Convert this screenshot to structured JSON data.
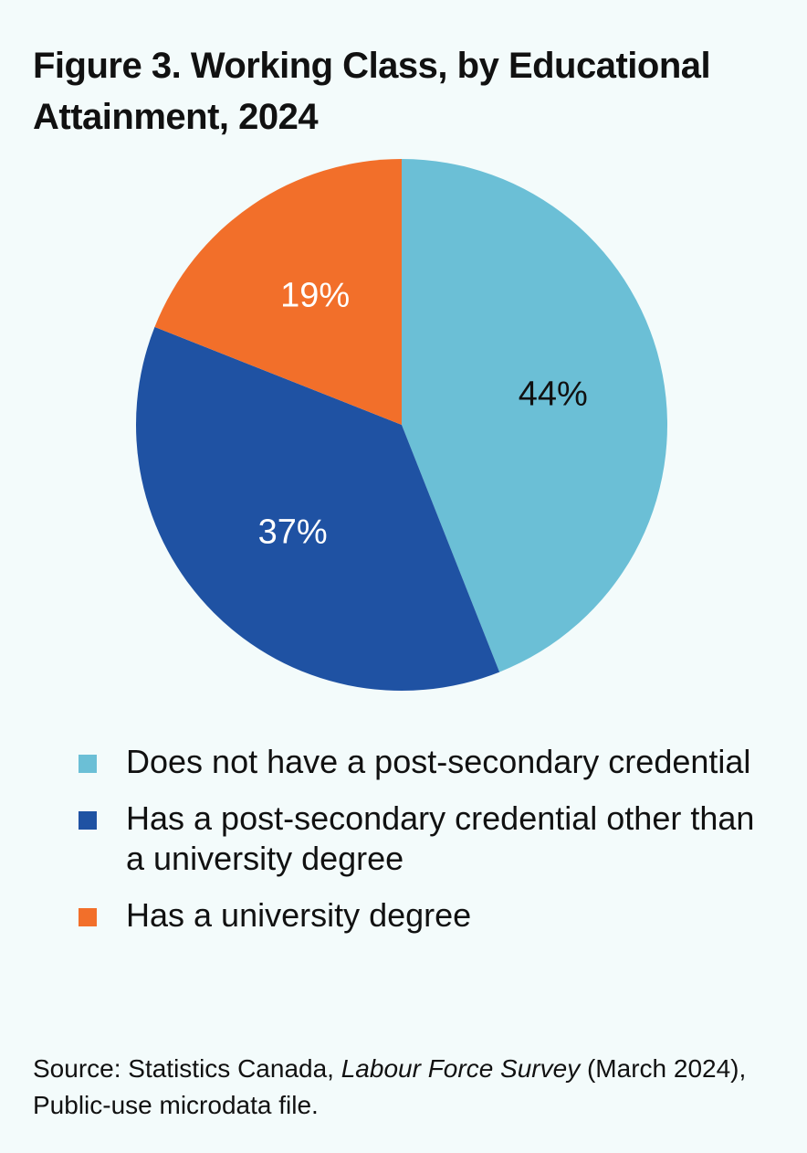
{
  "colors": {
    "background": "#f3fbfb",
    "slice_1": "#6bbfd6",
    "slice_2": "#1f52a3",
    "slice_3": "#f26f2a",
    "label_dark": "#111111",
    "label_light": "#ffffff"
  },
  "chart_data": {
    "type": "pie",
    "title": "Figure 3. Working Class, by Educational Attainment, 2024",
    "title_lines": [
      "Figure 3. Working Class, by Educational",
      "Attainment, 2024"
    ],
    "slices": [
      {
        "label": "Does not have a post-secondary credential",
        "value": 44,
        "display": "44%"
      },
      {
        "label": "Has a post-secondary credential other than a university degree",
        "value": 37,
        "display": "37%"
      },
      {
        "label": "Has a university degree",
        "value": 19,
        "display": "19%"
      }
    ],
    "legend_lines": [
      [
        "Does not have a post-secondary credential"
      ],
      [
        "Has a post-secondary credential other than",
        "a university degree"
      ],
      [
        "Has a university degree"
      ]
    ],
    "legend_position": "bottom"
  },
  "source": {
    "prefix": "Source: Statistics Canada, ",
    "italic": "Labour Force Survey",
    "suffix": " (March 2024),",
    "line2": "Public-use microdata file."
  }
}
